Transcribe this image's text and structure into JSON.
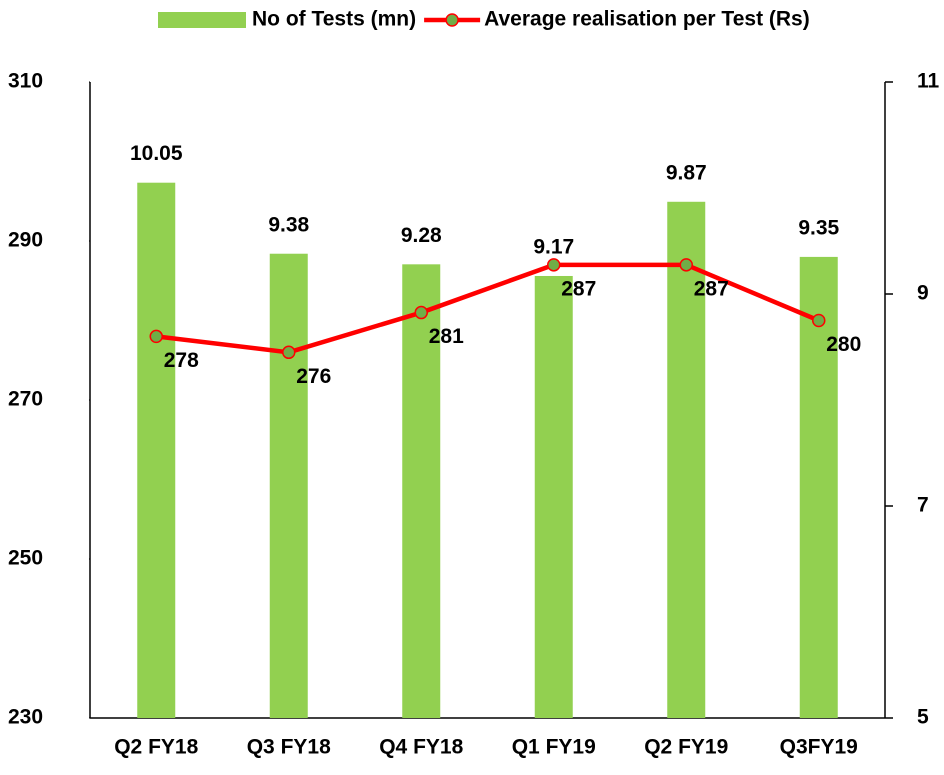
{
  "chart_data": {
    "type": "bar",
    "categories": [
      "Q2 FY18",
      "Q3 FY18",
      "Q4 FY18",
      "Q1 FY19",
      "Q2 FY19",
      "Q3FY19"
    ],
    "series": [
      {
        "name": "No of Tests (mn)",
        "type": "bar",
        "axis": "y2",
        "color": "#92d050",
        "values": [
          10.05,
          9.38,
          9.28,
          9.17,
          9.87,
          9.35
        ]
      },
      {
        "name": "Average realisation per Test (Rs)",
        "type": "line",
        "axis": "y",
        "color": "#ff0000",
        "marker_color": "#70ad47",
        "values": [
          278,
          276,
          281,
          287,
          287,
          280
        ]
      }
    ],
    "ylim": [
      230,
      310
    ],
    "yticks": [
      230,
      250,
      270,
      290,
      310
    ],
    "y2lim": [
      5,
      11
    ],
    "y2ticks": [
      5,
      7,
      9,
      11
    ],
    "grid": false,
    "legend": "top"
  }
}
